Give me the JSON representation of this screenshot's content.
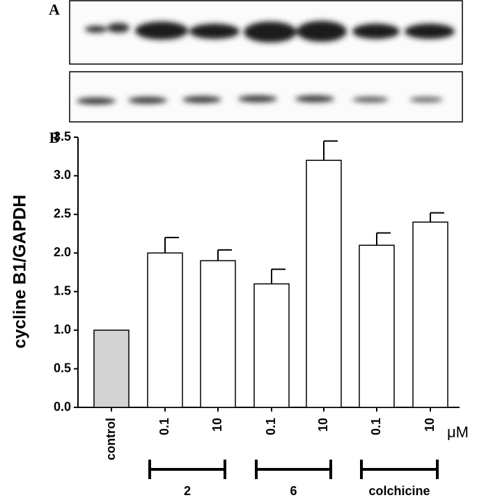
{
  "panels": {
    "a": "A",
    "b": "B"
  },
  "chart_data": {
    "type": "bar",
    "y_label": "cycline B1/GAPDH",
    "categories": [
      "control",
      "0.1",
      "10",
      "0.1",
      "10",
      "0.1",
      "10"
    ],
    "values": [
      1.0,
      2.0,
      1.9,
      1.6,
      3.2,
      2.1,
      2.4
    ],
    "errors": [
      null,
      0.2,
      0.14,
      0.19,
      0.25,
      0.16,
      0.12
    ],
    "colors": [
      "#d3d3d3",
      "#ffffff",
      "#ffffff",
      "#ffffff",
      "#ffffff",
      "#ffffff",
      "#ffffff"
    ],
    "unit": "μM",
    "groups": [
      "2",
      "6",
      "colchicine"
    ],
    "ylim": [
      0,
      3.5
    ],
    "yticks": [
      {
        "value": 0,
        "label": "0.0"
      },
      0.5,
      {
        "value": 1,
        "label": "1.0"
      },
      1.5,
      {
        "value": 2,
        "label": "2.0"
      },
      2.5,
      {
        "value": 3,
        "label": "3.0"
      },
      3.5
    ]
  }
}
